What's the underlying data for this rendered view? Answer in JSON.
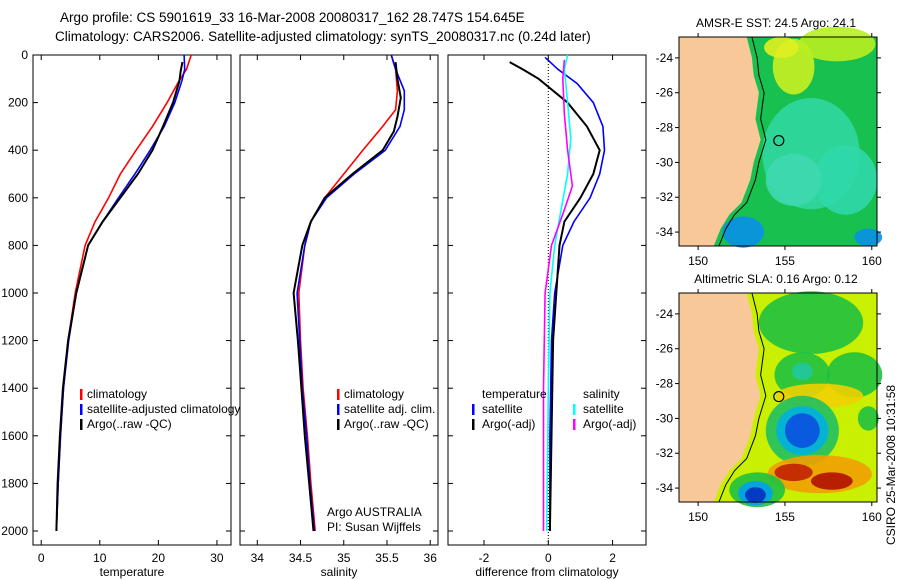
{
  "title": {
    "line1": "Argo profile: CS 5901619_33 16-Mar-2008 20080317_162 28.747S 154.645E",
    "line2": "Climatology: CARS2006. Satellite-adjusted climatology: synTS_20080317.nc (0.24d later)"
  },
  "colors": {
    "climatology": "#ff0000",
    "satellite": "#0000ff",
    "argo": "#000000",
    "sal_satellite": "#00ffff",
    "sal_argo": "#ff00ff",
    "land": "#f8c898"
  },
  "credits": {
    "agency": "Argo AUSTRALIA",
    "pi": "PI: Susan Wijffels",
    "stamp": "CSIRO 25-Mar-2008 10:31:58"
  },
  "chart_data": [
    {
      "type": "line",
      "name": "temperature-profile",
      "xlabel": "temperature",
      "ylabel": "",
      "xlim": [
        -1.4,
        32.4
      ],
      "ylim": [
        2060,
        0
      ],
      "xticks": [
        "0",
        "10",
        "20",
        "30"
      ],
      "yticks": [
        "0",
        "200",
        "400",
        "600",
        "800",
        "1000",
        "1200",
        "1400",
        "1600",
        "1800",
        "2000"
      ],
      "legend": [
        "climatology",
        "satellite-adjusted climatology",
        "Argo(..raw -QC)"
      ],
      "legend_position": "lower-left",
      "series": [
        {
          "name": "climatology",
          "color": "#ff0000",
          "points": [
            [
              25.6,
              0
            ],
            [
              24.8,
              60
            ],
            [
              23.5,
              110
            ],
            [
              21.5,
              200
            ],
            [
              19,
              300
            ],
            [
              16.2,
              400
            ],
            [
              13.5,
              500
            ],
            [
              11.5,
              600
            ],
            [
              9.2,
              700
            ],
            [
              7.5,
              800
            ],
            [
              5.8,
              1000
            ],
            [
              4.6,
              1200
            ],
            [
              3.8,
              1400
            ],
            [
              3.3,
              1600
            ],
            [
              2.9,
              1800
            ],
            [
              2.6,
              2000
            ]
          ]
        },
        {
          "name": "satellite-adjusted climatology",
          "color": "#0000ff",
          "points": [
            [
              24.4,
              0
            ],
            [
              24.5,
              60
            ],
            [
              24,
              110
            ],
            [
              22.8,
              200
            ],
            [
              21,
              300
            ],
            [
              18.6,
              400
            ],
            [
              16,
              500
            ],
            [
              13.2,
              600
            ],
            [
              10.5,
              700
            ],
            [
              8,
              800
            ],
            [
              6,
              1000
            ],
            [
              4.7,
              1200
            ],
            [
              3.8,
              1400
            ],
            [
              3.3,
              1600
            ],
            [
              2.9,
              1800
            ],
            [
              2.6,
              2000
            ]
          ]
        },
        {
          "name": "Argo(..raw -QC)",
          "color": "#000000",
          "points": [
            [
              24.1,
              30
            ],
            [
              23.8,
              70
            ],
            [
              23.6,
              110
            ],
            [
              22.5,
              200
            ],
            [
              20.8,
              300
            ],
            [
              19,
              400
            ],
            [
              16.5,
              500
            ],
            [
              13.5,
              600
            ],
            [
              10.5,
              700
            ],
            [
              8,
              800
            ],
            [
              6,
              1000
            ],
            [
              4.6,
              1200
            ],
            [
              3.7,
              1400
            ],
            [
              3.2,
              1600
            ],
            [
              2.8,
              1800
            ],
            [
              2.6,
              2000
            ]
          ]
        }
      ]
    },
    {
      "type": "line",
      "name": "salinity-profile",
      "xlabel": "salinity",
      "xlim": [
        33.8,
        36.09
      ],
      "ylim": [
        2060,
        0
      ],
      "xticks": [
        "34",
        "34.5",
        "35",
        "35.5",
        "36"
      ],
      "legend": [
        "climatology",
        "satellite adj. clim.",
        "Argo(..raw -QC)"
      ],
      "legend_position": "lower-right",
      "series": [
        {
          "name": "climatology",
          "color": "#ff0000",
          "points": [
            [
              35.55,
              0
            ],
            [
              35.6,
              60
            ],
            [
              35.62,
              150
            ],
            [
              35.6,
              230
            ],
            [
              35.45,
              300
            ],
            [
              35.22,
              400
            ],
            [
              35,
              500
            ],
            [
              34.78,
              600
            ],
            [
              34.62,
              700
            ],
            [
              34.55,
              800
            ],
            [
              34.48,
              1000
            ],
            [
              34.5,
              1200
            ],
            [
              34.53,
              1400
            ],
            [
              34.58,
              1600
            ],
            [
              34.62,
              1800
            ],
            [
              34.67,
              2000
            ]
          ]
        },
        {
          "name": "satellite adj. clim.",
          "color": "#0000ff",
          "points": [
            [
              35.55,
              0
            ],
            [
              35.6,
              60
            ],
            [
              35.7,
              150
            ],
            [
              35.7,
              230
            ],
            [
              35.65,
              300
            ],
            [
              35.48,
              400
            ],
            [
              35.12,
              500
            ],
            [
              34.8,
              600
            ],
            [
              34.62,
              700
            ],
            [
              34.55,
              800
            ],
            [
              34.46,
              1000
            ],
            [
              34.49,
              1200
            ],
            [
              34.52,
              1400
            ],
            [
              34.57,
              1600
            ],
            [
              34.61,
              1800
            ],
            [
              34.66,
              2000
            ]
          ]
        },
        {
          "name": "Argo(..raw -QC)",
          "color": "#000000",
          "points": [
            [
              35.6,
              30
            ],
            [
              35.62,
              100
            ],
            [
              35.66,
              180
            ],
            [
              35.62,
              260
            ],
            [
              35.58,
              320
            ],
            [
              35.45,
              400
            ],
            [
              35.1,
              500
            ],
            [
              34.78,
              600
            ],
            [
              34.62,
              700
            ],
            [
              34.52,
              800
            ],
            [
              34.42,
              1000
            ],
            [
              34.47,
              1200
            ],
            [
              34.51,
              1400
            ],
            [
              34.55,
              1600
            ],
            [
              34.6,
              1800
            ],
            [
              34.65,
              2000
            ]
          ]
        }
      ]
    },
    {
      "type": "line",
      "name": "difference-profile",
      "xlabel": "difference from climatology",
      "xlim": [
        -3.12,
        3.04
      ],
      "ylim": [
        2060,
        0
      ],
      "xticks": [
        "-2",
        "0",
        "2"
      ],
      "legend_groups": [
        {
          "title": "temperature",
          "items": [
            "satellite",
            "Argo(-adj)"
          ]
        },
        {
          "title": "salinity",
          "items": [
            "satellite",
            "Argo(-adj)"
          ]
        }
      ],
      "series": [
        {
          "name": "temperature satellite",
          "color": "#0000ff",
          "points": [
            [
              -0.1,
              10
            ],
            [
              0.3,
              60
            ],
            [
              0.9,
              120
            ],
            [
              1.4,
              200
            ],
            [
              1.7,
              300
            ],
            [
              1.75,
              400
            ],
            [
              1.6,
              500
            ],
            [
              1.3,
              600
            ],
            [
              0.8,
              700
            ],
            [
              0.45,
              800
            ],
            [
              0.2,
              1000
            ],
            [
              0.1,
              1200
            ],
            [
              0.05,
              1600
            ],
            [
              0.05,
              2000
            ]
          ]
        },
        {
          "name": "temperature Argo(-adj)",
          "color": "#000000",
          "points": [
            [
              -1.2,
              30
            ],
            [
              -0.8,
              60
            ],
            [
              -0.3,
              100
            ],
            [
              0.6,
              200
            ],
            [
              1.2,
              300
            ],
            [
              1.6,
              400
            ],
            [
              1.4,
              500
            ],
            [
              1.0,
              600
            ],
            [
              0.5,
              700
            ],
            [
              0.35,
              800
            ],
            [
              0.25,
              1000
            ],
            [
              0.15,
              1200
            ],
            [
              0.1,
              1600
            ],
            [
              0.05,
              2000
            ]
          ]
        },
        {
          "name": "salinity satellite",
          "color": "#00ffff",
          "points": [
            [
              0.6,
              0
            ],
            [
              0.5,
              60
            ],
            [
              0.6,
              200
            ],
            [
              0.7,
              350
            ],
            [
              0.6,
              500
            ],
            [
              0.4,
              650
            ],
            [
              0.2,
              800
            ],
            [
              0.05,
              1000
            ],
            [
              0,
              1400
            ],
            [
              -0.05,
              2000
            ]
          ]
        },
        {
          "name": "salinity Argo(-adj)",
          "color": "#ff00ff",
          "points": [
            [
              0.5,
              20
            ],
            [
              0.45,
              100
            ],
            [
              0.5,
              250
            ],
            [
              0.6,
              400
            ],
            [
              0.75,
              550
            ],
            [
              0.5,
              650
            ],
            [
              0.1,
              800
            ],
            [
              -0.1,
              1000
            ],
            [
              -0.15,
              1400
            ],
            [
              -0.15,
              2000
            ]
          ]
        }
      ]
    }
  ],
  "maps": [
    {
      "title": "AMSR-E SST: 24.5 Argo: 24.1",
      "lat_ticks": [
        "-24",
        "-26",
        "-28",
        "-30",
        "-32",
        "-34"
      ],
      "lon_ticks": [
        "150",
        "155",
        "160"
      ],
      "argo_position": [
        154.645,
        -28.747
      ]
    },
    {
      "title": "Altimetric SLA: 0.16 Argo: 0.12",
      "lat_ticks": [
        "-24",
        "-26",
        "-28",
        "-30",
        "-32",
        "-34"
      ],
      "lon_ticks": [
        "150",
        "155",
        "160"
      ],
      "argo_position": [
        154.645,
        -28.747
      ]
    }
  ]
}
